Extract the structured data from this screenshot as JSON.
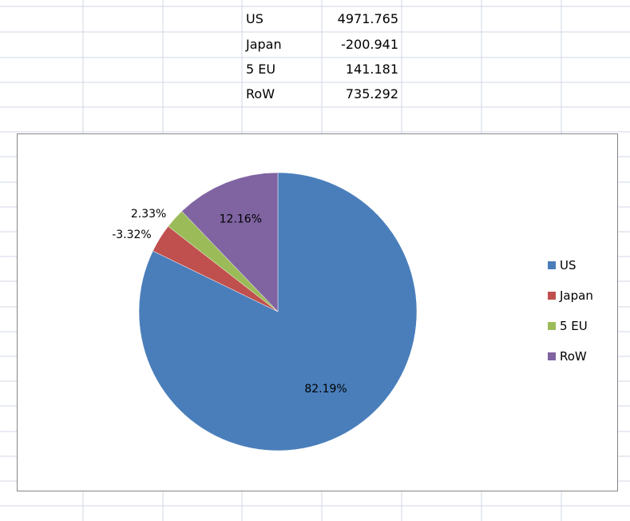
{
  "sheet": {
    "rows": [
      {
        "label": "US",
        "value": "4971.765"
      },
      {
        "label": "Japan",
        "value": "-200.941"
      },
      {
        "label": "5 EU",
        "value": "141.181"
      },
      {
        "label": "RoW",
        "value": "735.292"
      }
    ]
  },
  "chart_data": {
    "type": "pie",
    "categories": [
      "US",
      "Japan",
      "5 EU",
      "RoW"
    ],
    "values": [
      4971.765,
      -200.941,
      141.181,
      735.292
    ],
    "percent_labels": [
      "82.19%",
      "-3.32%",
      "2.33%",
      "12.16%"
    ],
    "colors": [
      "#4a7ebb",
      "#c0504d",
      "#9bbb59",
      "#8064a2"
    ],
    "legend_position": "right",
    "start_angle": "12 o'clock, clockwise"
  }
}
